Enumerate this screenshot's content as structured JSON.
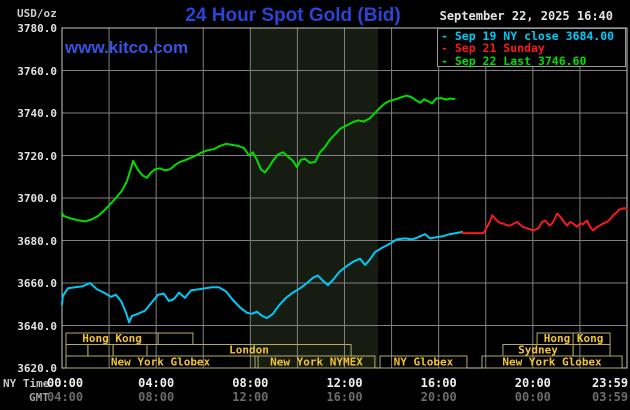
{
  "header": {
    "unit_label": "USD/oz",
    "title": "24 Hour Spot Gold (Bid)",
    "timestamp": "September 22, 2025 16:40",
    "watermark": "www.kitco.com"
  },
  "colors": {
    "background": "#000000",
    "title_blue": "#2945d6",
    "watermark_blue": "#3554e3",
    "grid": "#818181",
    "plot_border": "#c9c9c9",
    "nymex_band": "#171c13",
    "series_sep19": "#00c9f7",
    "series_sep21": "#f71b1b",
    "series_sep22": "#00dd00",
    "session_border": "#b3ab64",
    "session_text": "#f2c332",
    "axis_text_bright": "#f0f0f0",
    "axis_text_dim": "#6c6c6c",
    "y_label": "#e2e2e2"
  },
  "legend": [
    {
      "dash": "-",
      "label": "Sep 19 NY close 3684.00",
      "color": "#00c9f7"
    },
    {
      "dash": "-",
      "label": "Sep 21 Sunday",
      "color": "#f71b1b"
    },
    {
      "dash": "-",
      "label": "Sep 22 Last 3746.60",
      "color": "#00dd00"
    }
  ],
  "axes": {
    "y_ticks": [
      "3780.0",
      "3760.0",
      "3740.0",
      "3720.0",
      "3700.0",
      "3680.0",
      "3660.0",
      "3640.0",
      "3620.0"
    ],
    "y_values": [
      3780,
      3760,
      3740,
      3720,
      3700,
      3680,
      3660,
      3640,
      3620
    ],
    "x_rows": [
      {
        "name": "NY Time",
        "color": "#c4c4c4",
        "value_color": "#f0f0f0",
        "labels": [
          "00:00",
          "04:00",
          "08:00",
          "12:00",
          "16:00",
          "20:00",
          "23:59"
        ]
      },
      {
        "name": "GMT",
        "color": "#a2a2a2",
        "value_color": "#6c6c6c",
        "labels": [
          "04:00",
          "08:00",
          "12:00",
          "16:00",
          "20:00",
          "00:00",
          "03:59"
        ]
      }
    ],
    "x_hours": [
      0,
      4,
      8,
      12,
      16,
      20,
      23.983
    ]
  },
  "sessions": {
    "rows": [
      {
        "boxes": [
          {
            "start_h": 0.17,
            "end_h": 4.08,
            "label": "Hong Kong"
          },
          {
            "start_h": 4.08,
            "end_h": 5.56,
            "label": ""
          },
          {
            "start_h": 20.18,
            "end_h": 23.28,
            "label": "Hong Kong",
            "divider_h": 21.71
          }
        ]
      },
      {
        "boxes": [
          {
            "start_h": 0.17,
            "end_h": 1.1,
            "label": ""
          },
          {
            "start_h": 1.1,
            "end_h": 2.17,
            "label": ""
          },
          {
            "start_h": 2.17,
            "end_h": 3.61,
            "label": ""
          },
          {
            "start_h": 3.61,
            "end_h": 12.28,
            "label": "London"
          },
          {
            "start_h": 18.73,
            "end_h": 21.71,
            "label": "Sydney"
          },
          {
            "start_h": 21.71,
            "end_h": 23.28,
            "label": ""
          }
        ]
      },
      {
        "boxes": [
          {
            "start_h": 0.17,
            "end_h": 8.2,
            "label": "New York Globex"
          },
          {
            "start_h": 8.33,
            "end_h": 13.29,
            "label": "New York NYMEX"
          },
          {
            "start_h": 13.51,
            "end_h": 17.2,
            "label": "NY Globex"
          },
          {
            "start_h": 17.84,
            "end_h": 23.79,
            "label": "New York Globex"
          }
        ]
      }
    ]
  },
  "chart_data": {
    "type": "line",
    "title": "24 Hour Spot Gold (Bid)",
    "xlabel": "NY Time (hours)",
    "ylabel": "USD/oz",
    "xlim": [
      0,
      24
    ],
    "ylim": [
      3620,
      3780
    ],
    "grid": true,
    "x_gridline_step_hours": 2,
    "y_gridline_step": 20,
    "nymex_band_hours": [
      8.0,
      13.42
    ],
    "legend_position": "top-right",
    "series": [
      {
        "name": "Sep 19 NY close 3684.00",
        "color": "#00c9f7",
        "points": [
          [
            0,
            3650
          ],
          [
            0.04,
            3654
          ],
          [
            0.25,
            3657.5
          ],
          [
            0.55,
            3658
          ],
          [
            0.89,
            3658.5
          ],
          [
            1.19,
            3660
          ],
          [
            1.49,
            3657
          ],
          [
            1.78,
            3655.5
          ],
          [
            2.08,
            3653.5
          ],
          [
            2.29,
            3654.5
          ],
          [
            2.51,
            3651.5
          ],
          [
            2.72,
            3646
          ],
          [
            2.85,
            3641.5
          ],
          [
            2.97,
            3644.5
          ],
          [
            3.23,
            3645.5
          ],
          [
            3.53,
            3647
          ],
          [
            3.82,
            3651
          ],
          [
            4.08,
            3654.5
          ],
          [
            4.33,
            3655
          ],
          [
            4.54,
            3651.5
          ],
          [
            4.76,
            3652.5
          ],
          [
            4.97,
            3655.5
          ],
          [
            5.22,
            3653
          ],
          [
            5.48,
            3656.5
          ],
          [
            5.78,
            3657
          ],
          [
            6.07,
            3657.5
          ],
          [
            6.37,
            3658
          ],
          [
            6.67,
            3658
          ],
          [
            6.97,
            3656
          ],
          [
            7.26,
            3652
          ],
          [
            7.56,
            3648.5
          ],
          [
            7.86,
            3646
          ],
          [
            8.07,
            3645.5
          ],
          [
            8.28,
            3646.5
          ],
          [
            8.5,
            3644.5
          ],
          [
            8.71,
            3643.5
          ],
          [
            8.96,
            3645.5
          ],
          [
            9.22,
            3649.5
          ],
          [
            9.51,
            3653
          ],
          [
            9.81,
            3655.5
          ],
          [
            10.11,
            3657.5
          ],
          [
            10.41,
            3660
          ],
          [
            10.66,
            3662.5
          ],
          [
            10.87,
            3663.5
          ],
          [
            11.09,
            3661
          ],
          [
            11.3,
            3659
          ],
          [
            11.55,
            3662
          ],
          [
            11.81,
            3665.5
          ],
          [
            12.1,
            3668
          ],
          [
            12.36,
            3670
          ],
          [
            12.66,
            3671.5
          ],
          [
            12.87,
            3668.5
          ],
          [
            13.08,
            3671
          ],
          [
            13.29,
            3674.5
          ],
          [
            13.59,
            3676.5
          ],
          [
            13.93,
            3678.5
          ],
          [
            14.23,
            3680.5
          ],
          [
            14.57,
            3681
          ],
          [
            14.87,
            3680.5
          ],
          [
            15.12,
            3681.5
          ],
          [
            15.42,
            3683
          ],
          [
            15.63,
            3681
          ],
          [
            15.89,
            3681.5
          ],
          [
            16.18,
            3682
          ],
          [
            16.48,
            3683
          ],
          [
            16.73,
            3683.5
          ],
          [
            17,
            3684
          ]
        ]
      },
      {
        "name": "Sep 21 Sunday",
        "color": "#f71b1b",
        "points": [
          [
            17,
            3683.5
          ],
          [
            17.9,
            3683.5
          ],
          [
            18.01,
            3685.5
          ],
          [
            18.18,
            3689
          ],
          [
            18.27,
            3691.8
          ],
          [
            18.39,
            3690.4
          ],
          [
            18.56,
            3688.5
          ],
          [
            18.73,
            3688
          ],
          [
            18.9,
            3687.2
          ],
          [
            19.03,
            3687
          ],
          [
            19.2,
            3688
          ],
          [
            19.33,
            3688.7
          ],
          [
            19.46,
            3687.5
          ],
          [
            19.58,
            3686.4
          ],
          [
            19.79,
            3685.6
          ],
          [
            20.01,
            3684.7
          ],
          [
            20.22,
            3685.6
          ],
          [
            20.39,
            3688.7
          ],
          [
            20.52,
            3689.4
          ],
          [
            20.64,
            3688
          ],
          [
            20.73,
            3687
          ],
          [
            20.86,
            3688.7
          ],
          [
            21.03,
            3692.7
          ],
          [
            21.16,
            3691.3
          ],
          [
            21.28,
            3689.4
          ],
          [
            21.45,
            3687
          ],
          [
            21.58,
            3688.7
          ],
          [
            21.71,
            3688
          ],
          [
            21.88,
            3686.4
          ],
          [
            22,
            3688
          ],
          [
            22.13,
            3687.7
          ],
          [
            22.3,
            3689.4
          ],
          [
            22.43,
            3686.4
          ],
          [
            22.56,
            3684.7
          ],
          [
            22.73,
            3686.4
          ],
          [
            22.85,
            3687
          ],
          [
            22.98,
            3688
          ],
          [
            23.15,
            3688.7
          ],
          [
            23.28,
            3690
          ],
          [
            23.41,
            3691.8
          ],
          [
            23.58,
            3693.4
          ],
          [
            23.66,
            3694.5
          ],
          [
            23.87,
            3695.2
          ],
          [
            23.98,
            3695
          ]
        ]
      },
      {
        "name": "Sep 22 Last 3746.60",
        "color": "#00dd00",
        "points": [
          [
            0,
            3693
          ],
          [
            0.08,
            3691.5
          ],
          [
            0.34,
            3690.5
          ],
          [
            0.68,
            3689.5
          ],
          [
            0.98,
            3689
          ],
          [
            1.27,
            3690
          ],
          [
            1.53,
            3691.5
          ],
          [
            1.78,
            3694
          ],
          [
            2.04,
            3697
          ],
          [
            2.29,
            3700
          ],
          [
            2.55,
            3703.5
          ],
          [
            2.76,
            3708
          ],
          [
            2.93,
            3714
          ],
          [
            3.02,
            3717.5
          ],
          [
            3.14,
            3715
          ],
          [
            3.27,
            3712.5
          ],
          [
            3.44,
            3710.5
          ],
          [
            3.61,
            3709.5
          ],
          [
            3.78,
            3712
          ],
          [
            3.95,
            3713.5
          ],
          [
            4.16,
            3714
          ],
          [
            4.37,
            3713
          ],
          [
            4.59,
            3713.5
          ],
          [
            4.8,
            3715.5
          ],
          [
            5.01,
            3717
          ],
          [
            5.27,
            3718
          ],
          [
            5.48,
            3719
          ],
          [
            5.69,
            3720
          ],
          [
            5.95,
            3721.5
          ],
          [
            6.2,
            3722.5
          ],
          [
            6.46,
            3723
          ],
          [
            6.71,
            3724.5
          ],
          [
            6.97,
            3725.5
          ],
          [
            7.22,
            3725
          ],
          [
            7.48,
            3724.5
          ],
          [
            7.73,
            3723.5
          ],
          [
            7.94,
            3720
          ],
          [
            8.11,
            3721.5
          ],
          [
            8.28,
            3718
          ],
          [
            8.45,
            3713.5
          ],
          [
            8.62,
            3712
          ],
          [
            8.79,
            3714.5
          ],
          [
            8.96,
            3717.5
          ],
          [
            9.18,
            3720.5
          ],
          [
            9.39,
            3721.5
          ],
          [
            9.6,
            3719.5
          ],
          [
            9.81,
            3717.5
          ],
          [
            9.98,
            3714.5
          ],
          [
            10.15,
            3718
          ],
          [
            10.32,
            3718.5
          ],
          [
            10.53,
            3716.5
          ],
          [
            10.75,
            3717
          ],
          [
            10.96,
            3721.5
          ],
          [
            11.17,
            3724
          ],
          [
            11.38,
            3727.5
          ],
          [
            11.6,
            3730
          ],
          [
            11.81,
            3732.5
          ],
          [
            12.06,
            3734
          ],
          [
            12.32,
            3735.5
          ],
          [
            12.57,
            3736.5
          ],
          [
            12.83,
            3736
          ],
          [
            13.08,
            3737.5
          ],
          [
            13.29,
            3740
          ],
          [
            13.51,
            3742.5
          ],
          [
            13.72,
            3744.5
          ],
          [
            13.93,
            3745.8
          ],
          [
            14.19,
            3746.5
          ],
          [
            14.44,
            3747.5
          ],
          [
            14.65,
            3748.2
          ],
          [
            14.87,
            3747.3
          ],
          [
            15.04,
            3746
          ],
          [
            15.21,
            3744.8
          ],
          [
            15.38,
            3746.5
          ],
          [
            15.55,
            3745.5
          ],
          [
            15.72,
            3744.5
          ],
          [
            15.89,
            3746.8
          ],
          [
            16.1,
            3747
          ],
          [
            16.31,
            3746.3
          ],
          [
            16.48,
            3746.8
          ],
          [
            16.67,
            3746.6
          ]
        ]
      }
    ]
  }
}
